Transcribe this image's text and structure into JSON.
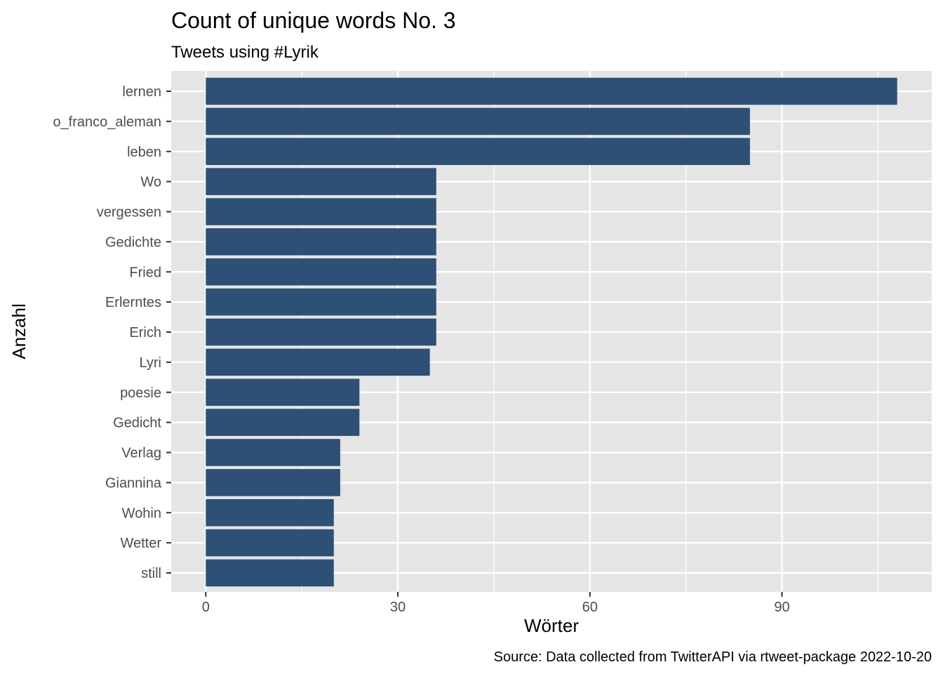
{
  "chart_data": {
    "type": "bar",
    "orientation": "horizontal",
    "title": "Count of unique words No. 3",
    "subtitle": "Tweets using #Lyrik",
    "xlabel": "Wörter",
    "ylabel": "Anzahl",
    "caption": "Source: Data collected from TwitterAPI via rtweet-package  2022-10-20",
    "categories": [
      "lernen",
      "o_franco_aleman",
      "leben",
      "Wo",
      "vergessen",
      "Gedichte",
      "Fried",
      "Erlerntes",
      "Erich",
      "Lyri",
      "poesie",
      "Gedicht",
      "Verlag",
      "Giannina",
      "Wohin",
      "Wetter",
      "still"
    ],
    "values": [
      108,
      85,
      85,
      36,
      36,
      36,
      36,
      36,
      36,
      35,
      24,
      24,
      21,
      21,
      20,
      20,
      20
    ],
    "xticks": [
      0,
      30,
      60,
      90
    ],
    "xlim": [
      -5.4,
      113.4
    ],
    "grid": true,
    "colors": {
      "bar": "#2E5077",
      "panel": "#E5E5E5",
      "grid": "#FFFFFF"
    }
  }
}
